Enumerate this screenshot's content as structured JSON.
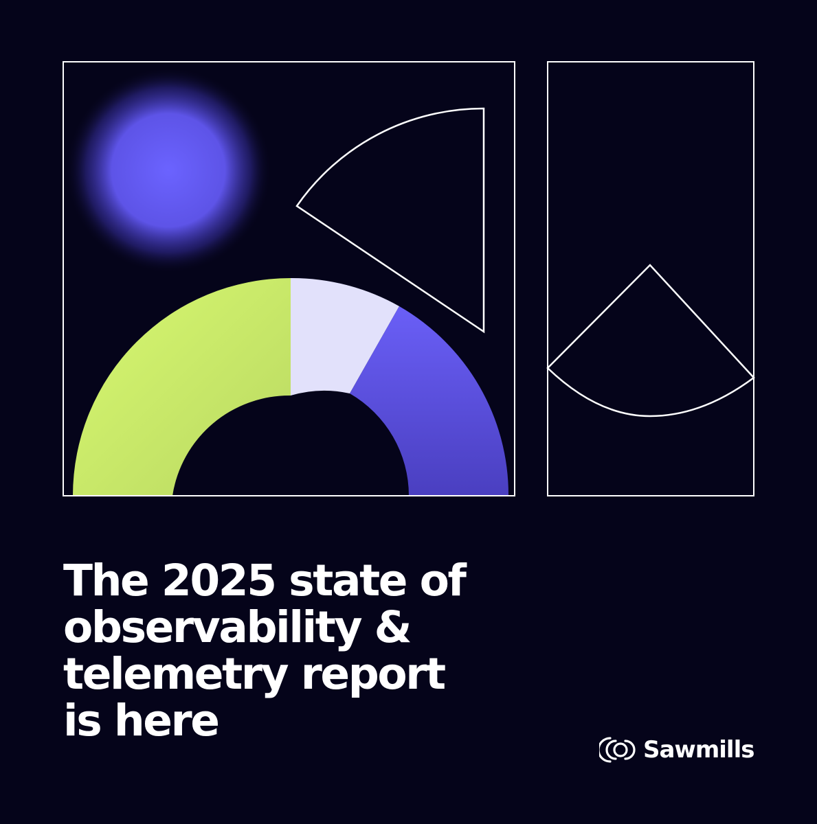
{
  "headline": {
    "line1": "The 2025 state of",
    "line2": "observability &",
    "line3": "telemetry report",
    "line4": "is here"
  },
  "brand": {
    "name": "Sawmills",
    "logo_icon": "sawmills-logo-icon"
  },
  "colors": {
    "background": "#05041a",
    "outline": "#ffffff",
    "lime": "#d4f56e",
    "lavender": "#e2e1fb",
    "violet": "#6459f0",
    "glow": "#6b63ff"
  },
  "donut_segments": [
    {
      "name": "lime",
      "start_deg": 180,
      "end_deg": 270
    },
    {
      "name": "lavender",
      "start_deg": 270,
      "end_deg": 301
    },
    {
      "name": "violet",
      "start_deg": 301,
      "end_deg": 360
    }
  ]
}
